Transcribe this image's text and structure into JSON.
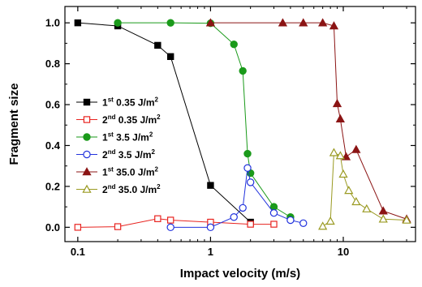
{
  "chart_data": {
    "type": "line",
    "xlabel": "Impact velocity (m/s)",
    "ylabel": "Fragment size",
    "xscale": "log",
    "xlim": [
      0.08,
      35
    ],
    "ylim": [
      -0.07,
      1.08
    ],
    "x_ticks": [
      {
        "value": 0.1,
        "label": "0.1"
      },
      {
        "value": 1,
        "label": "1"
      },
      {
        "value": 10,
        "label": "10"
      }
    ],
    "y_ticks": [
      {
        "value": 0.0,
        "label": "0.0"
      },
      {
        "value": 0.2,
        "label": "0.2"
      },
      {
        "value": 0.4,
        "label": "0.4"
      },
      {
        "value": 0.6,
        "label": "0.6"
      },
      {
        "value": 0.8,
        "label": "0.8"
      },
      {
        "value": 1.0,
        "label": "1.0"
      }
    ],
    "grid": false,
    "legend_position": "left",
    "series": [
      {
        "name": "1st 0.35 J/m2",
        "label": {
          "sup": "st",
          "pre": "1",
          "main": " 0.35 J/m",
          "exp": "2"
        },
        "color": "#000000",
        "marker": "square",
        "filled": true,
        "x": [
          0.1,
          0.2,
          0.4,
          0.5,
          1.0,
          2.0
        ],
        "y": [
          1.0,
          0.985,
          0.89,
          0.835,
          0.205,
          0.025
        ]
      },
      {
        "name": "2nd 0.35 J/m2",
        "label": {
          "sup": "nd",
          "pre": "2",
          "main": " 0.35 J/m",
          "exp": "2"
        },
        "color": "#e8231f",
        "marker": "square",
        "filled": false,
        "x": [
          0.1,
          0.2,
          0.4,
          0.5,
          1.0,
          2.0,
          3.0
        ],
        "y": [
          0.0,
          0.003,
          0.042,
          0.035,
          0.025,
          0.015,
          0.015
        ]
      },
      {
        "name": "1st 3.5 J/m2",
        "label": {
          "sup": "st",
          "pre": "1",
          "main": " 3.5 J/m",
          "exp": "2"
        },
        "color": "#1a9a1a",
        "marker": "circle",
        "filled": true,
        "x": [
          0.2,
          0.5,
          1.0,
          1.5,
          1.75,
          1.9,
          2.0,
          3.0,
          4.0
        ],
        "y": [
          1.0,
          1.0,
          0.998,
          0.895,
          0.765,
          0.36,
          0.265,
          0.1,
          0.05
        ]
      },
      {
        "name": "2nd 3.5 J/m2",
        "label": {
          "sup": "nd",
          "pre": "2",
          "main": " 3.5 J/m",
          "exp": "2"
        },
        "color": "#2233dd",
        "marker": "circle",
        "filled": false,
        "x": [
          0.5,
          1.0,
          1.5,
          1.75,
          1.9,
          2.0,
          3.0,
          4.0,
          5.0
        ],
        "y": [
          0.0,
          0.0,
          0.05,
          0.095,
          0.29,
          0.22,
          0.07,
          0.035,
          0.02
        ]
      },
      {
        "name": "1st 35.0 J/m2",
        "label": {
          "sup": "st",
          "pre": "1",
          "main": " 35.0 J/m",
          "exp": "2"
        },
        "color": "#8b1414",
        "marker": "triangle",
        "filled": true,
        "x": [
          1.0,
          3.5,
          5.0,
          7.0,
          8.5,
          9.0,
          9.5,
          10.5,
          12.5,
          20,
          30
        ],
        "y": [
          1.0,
          1.0,
          1.0,
          1.0,
          0.985,
          0.605,
          0.53,
          0.345,
          0.38,
          0.08,
          0.04
        ]
      },
      {
        "name": "2nd 35.0 J/m2",
        "label": {
          "sup": "nd",
          "pre": "2",
          "main": " 35.0 J/m",
          "exp": "2"
        },
        "color": "#9a9a22",
        "marker": "triangle",
        "filled": false,
        "x": [
          7.0,
          8.0,
          8.5,
          9.5,
          10.0,
          11.0,
          12.5,
          15.0,
          20.0,
          30.0
        ],
        "y": [
          0.005,
          0.03,
          0.365,
          0.35,
          0.26,
          0.18,
          0.125,
          0.09,
          0.04,
          0.035
        ]
      }
    ]
  }
}
